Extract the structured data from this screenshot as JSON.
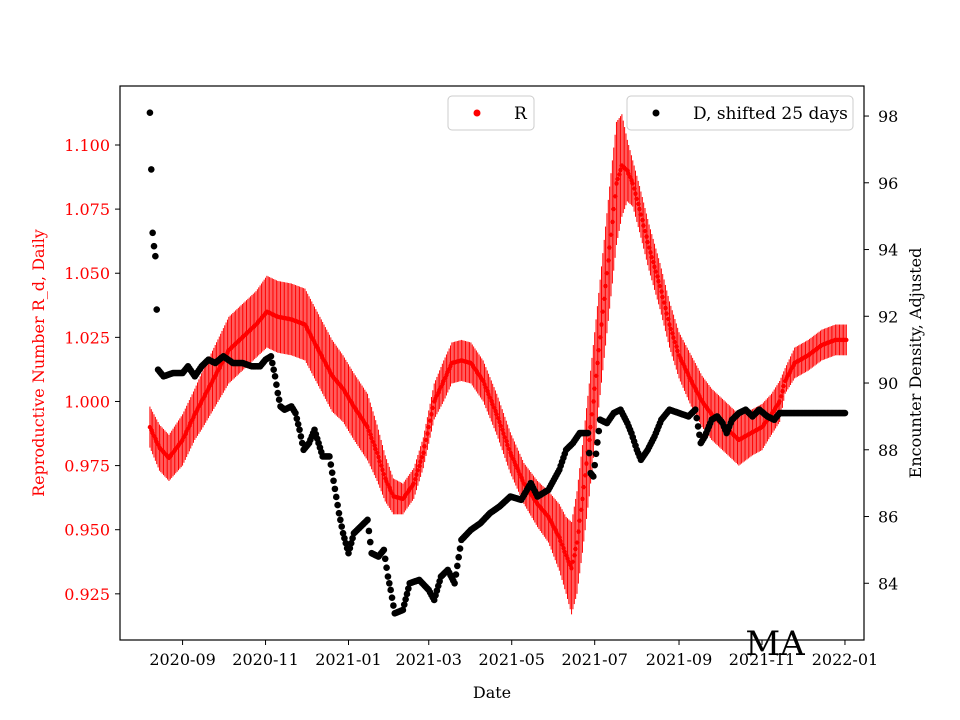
{
  "chart_data": {
    "type": "scatter",
    "title": "",
    "xlabel": "Date",
    "ylabel_left": "Reproductive Number R_d, Daily",
    "ylabel_right": "Encounter Density, Adjusted",
    "annotation": "MA",
    "x_range": [
      "2020-07-17",
      "2022-01-15"
    ],
    "ylim_left": [
      0.907,
      1.123
    ],
    "ylim_right": [
      82.3,
      98.9
    ],
    "x_ticks": [
      "2020-09",
      "2020-11",
      "2021-01",
      "2021-03",
      "2021-05",
      "2021-07",
      "2021-09",
      "2021-11",
      "2022-01"
    ],
    "y_ticks_left": [
      "0.925",
      "0.950",
      "0.975",
      "1.000",
      "1.025",
      "1.050",
      "1.075",
      "1.100"
    ],
    "y_ticks_right": [
      "84",
      "86",
      "88",
      "90",
      "92",
      "94",
      "96",
      "98"
    ],
    "grid": false,
    "colors": {
      "R": "#ff0000",
      "D": "#000000",
      "axes": "#000000"
    },
    "legends": [
      {
        "placement": "upper-center",
        "label": "R",
        "marker": "red-dot"
      },
      {
        "placement": "upper-right",
        "label": "D, shifted 25 days",
        "marker": "black-dot"
      }
    ],
    "series": [
      {
        "name": "R",
        "axis": "left",
        "error_bars": true,
        "points": [
          [
            "2020-08-08",
            0.99,
            0.008
          ],
          [
            "2020-08-15",
            0.982,
            0.009
          ],
          [
            "2020-08-22",
            0.978,
            0.009
          ],
          [
            "2020-09-01",
            0.985,
            0.01
          ],
          [
            "2020-09-10",
            0.995,
            0.01
          ],
          [
            "2020-09-15",
            1.0,
            0.011
          ],
          [
            "2020-09-25",
            1.01,
            0.012
          ],
          [
            "2020-10-05",
            1.02,
            0.013
          ],
          [
            "2020-10-15",
            1.025,
            0.013
          ],
          [
            "2020-10-25",
            1.03,
            0.013
          ],
          [
            "2020-11-02",
            1.035,
            0.014
          ],
          [
            "2020-11-10",
            1.033,
            0.014
          ],
          [
            "2020-11-20",
            1.032,
            0.014
          ],
          [
            "2020-11-30",
            1.03,
            0.014
          ],
          [
            "2020-12-10",
            1.02,
            0.014
          ],
          [
            "2020-12-20",
            1.01,
            0.014
          ],
          [
            "2020-12-28",
            1.005,
            0.013
          ],
          [
            "2021-01-05",
            0.998,
            0.013
          ],
          [
            "2021-01-15",
            0.99,
            0.013
          ],
          [
            "2021-01-22",
            0.98,
            0.011
          ],
          [
            "2021-01-28",
            0.97,
            0.009
          ],
          [
            "2021-02-03",
            0.963,
            0.007
          ],
          [
            "2021-02-10",
            0.962,
            0.006
          ],
          [
            "2021-02-18",
            0.968,
            0.006
          ],
          [
            "2021-02-25",
            0.98,
            0.006
          ],
          [
            "2021-03-05",
            1.0,
            0.007
          ],
          [
            "2021-03-12",
            1.008,
            0.008
          ],
          [
            "2021-03-18",
            1.015,
            0.008
          ],
          [
            "2021-03-25",
            1.016,
            0.008
          ],
          [
            "2021-04-01",
            1.015,
            0.008
          ],
          [
            "2021-04-10",
            1.008,
            0.008
          ],
          [
            "2021-04-20",
            0.995,
            0.008
          ],
          [
            "2021-04-30",
            0.98,
            0.008
          ],
          [
            "2021-05-10",
            0.968,
            0.008
          ],
          [
            "2021-05-20",
            0.96,
            0.009
          ],
          [
            "2021-05-28",
            0.955,
            0.01
          ],
          [
            "2021-06-05",
            0.947,
            0.013
          ],
          [
            "2021-06-10",
            0.94,
            0.015
          ],
          [
            "2021-06-14",
            0.935,
            0.018
          ],
          [
            "2021-06-18",
            0.945,
            0.02
          ],
          [
            "2021-06-22",
            0.962,
            0.021
          ],
          [
            "2021-06-27",
            0.985,
            0.022
          ],
          [
            "2021-07-02",
            1.01,
            0.022
          ],
          [
            "2021-07-08",
            1.04,
            0.023
          ],
          [
            "2021-07-13",
            1.065,
            0.024
          ],
          [
            "2021-07-17",
            1.085,
            0.024
          ],
          [
            "2021-07-21",
            1.092,
            0.02
          ],
          [
            "2021-07-25",
            1.09,
            0.012
          ],
          [
            "2021-07-29",
            1.085,
            0.009
          ],
          [
            "2021-08-03",
            1.075,
            0.009
          ],
          [
            "2021-08-10",
            1.06,
            0.009
          ],
          [
            "2021-08-18",
            1.045,
            0.009
          ],
          [
            "2021-08-25",
            1.03,
            0.009
          ],
          [
            "2021-09-01",
            1.018,
            0.009
          ],
          [
            "2021-09-10",
            1.008,
            0.01
          ],
          [
            "2021-09-18",
            1.0,
            0.01
          ],
          [
            "2021-09-25",
            0.995,
            0.01
          ],
          [
            "2021-10-05",
            0.99,
            0.01
          ],
          [
            "2021-10-15",
            0.985,
            0.01
          ],
          [
            "2021-10-25",
            0.988,
            0.009
          ],
          [
            "2021-11-01",
            0.99,
            0.009
          ],
          [
            "2021-11-08",
            0.995,
            0.008
          ],
          [
            "2021-11-14",
            1.0,
            0.008
          ],
          [
            "2021-11-18",
            1.008,
            0.005
          ],
          [
            "2021-11-25",
            1.015,
            0.006
          ],
          [
            "2021-12-05",
            1.018,
            0.006
          ],
          [
            "2021-12-15",
            1.022,
            0.006
          ],
          [
            "2021-12-25",
            1.024,
            0.006
          ],
          [
            "2022-01-02",
            1.024,
            0.006
          ]
        ]
      },
      {
        "name": "D, shifted 25 days",
        "axis": "right",
        "points": [
          [
            "2020-08-08",
            98.1
          ],
          [
            "2020-08-09",
            96.4
          ],
          [
            "2020-08-10",
            94.5
          ],
          [
            "2020-08-11",
            94.1
          ],
          [
            "2020-08-12",
            93.8
          ],
          [
            "2020-08-13",
            92.2
          ],
          [
            "2020-08-14",
            90.4
          ],
          [
            "2020-08-18",
            90.2
          ],
          [
            "2020-08-25",
            90.3
          ],
          [
            "2020-09-01",
            90.3
          ],
          [
            "2020-09-05",
            90.5
          ],
          [
            "2020-09-10",
            90.2
          ],
          [
            "2020-09-15",
            90.5
          ],
          [
            "2020-09-20",
            90.7
          ],
          [
            "2020-09-25",
            90.6
          ],
          [
            "2020-10-01",
            90.8
          ],
          [
            "2020-10-08",
            90.6
          ],
          [
            "2020-10-15",
            90.6
          ],
          [
            "2020-10-22",
            90.5
          ],
          [
            "2020-10-28",
            90.5
          ],
          [
            "2020-11-01",
            90.7
          ],
          [
            "2020-11-05",
            90.8
          ],
          [
            "2020-11-08",
            90.2
          ],
          [
            "2020-11-10",
            89.7
          ],
          [
            "2020-11-12",
            89.3
          ],
          [
            "2020-11-15",
            89.2
          ],
          [
            "2020-11-20",
            89.3
          ],
          [
            "2020-11-23",
            89.1
          ],
          [
            "2020-11-26",
            88.6
          ],
          [
            "2020-11-29",
            88.0
          ],
          [
            "2020-12-03",
            88.2
          ],
          [
            "2020-12-07",
            88.6
          ],
          [
            "2020-12-10",
            88.2
          ],
          [
            "2020-12-13",
            87.8
          ],
          [
            "2020-12-18",
            87.8
          ],
          [
            "2020-12-25",
            86.1
          ],
          [
            "2020-12-28",
            85.5
          ],
          [
            "2021-01-01",
            84.9
          ],
          [
            "2021-01-05",
            85.5
          ],
          [
            "2021-01-10",
            85.7
          ],
          [
            "2021-01-15",
            85.9
          ],
          [
            "2021-01-18",
            84.9
          ],
          [
            "2021-01-23",
            84.8
          ],
          [
            "2021-01-27",
            85.0
          ],
          [
            "2021-01-30",
            84.2
          ],
          [
            "2021-02-01",
            83.8
          ],
          [
            "2021-02-04",
            83.1
          ],
          [
            "2021-02-10",
            83.2
          ],
          [
            "2021-02-15",
            84.0
          ],
          [
            "2021-02-22",
            84.1
          ],
          [
            "2021-03-01",
            83.8
          ],
          [
            "2021-03-05",
            83.5
          ],
          [
            "2021-03-10",
            84.2
          ],
          [
            "2021-03-15",
            84.4
          ],
          [
            "2021-03-20",
            84.0
          ],
          [
            "2021-03-25",
            85.3
          ],
          [
            "2021-04-01",
            85.6
          ],
          [
            "2021-04-08",
            85.8
          ],
          [
            "2021-04-15",
            86.1
          ],
          [
            "2021-04-22",
            86.3
          ],
          [
            "2021-04-30",
            86.6
          ],
          [
            "2021-05-08",
            86.5
          ],
          [
            "2021-05-15",
            87.0
          ],
          [
            "2021-05-20",
            86.6
          ],
          [
            "2021-05-28",
            86.8
          ],
          [
            "2021-06-05",
            87.4
          ],
          [
            "2021-06-10",
            88.0
          ],
          [
            "2021-06-15",
            88.2
          ],
          [
            "2021-06-20",
            88.5
          ],
          [
            "2021-06-26",
            88.5
          ],
          [
            "2021-06-28",
            87.3
          ],
          [
            "2021-06-30",
            87.2
          ],
          [
            "2021-07-05",
            88.9
          ],
          [
            "2021-07-10",
            88.8
          ],
          [
            "2021-07-15",
            89.1
          ],
          [
            "2021-07-20",
            89.2
          ],
          [
            "2021-07-25",
            88.8
          ],
          [
            "2021-07-28",
            88.5
          ],
          [
            "2021-08-01",
            88.0
          ],
          [
            "2021-08-04",
            87.7
          ],
          [
            "2021-08-09",
            88.0
          ],
          [
            "2021-08-14",
            88.4
          ],
          [
            "2021-08-19",
            88.9
          ],
          [
            "2021-08-25",
            89.2
          ],
          [
            "2021-09-01",
            89.1
          ],
          [
            "2021-09-08",
            89.0
          ],
          [
            "2021-09-13",
            89.2
          ],
          [
            "2021-09-17",
            88.2
          ],
          [
            "2021-09-20",
            88.4
          ],
          [
            "2021-09-25",
            88.9
          ],
          [
            "2021-09-29",
            89.0
          ],
          [
            "2021-10-03",
            88.8
          ],
          [
            "2021-10-06",
            88.5
          ],
          [
            "2021-10-10",
            88.9
          ],
          [
            "2021-10-15",
            89.1
          ],
          [
            "2021-10-20",
            89.2
          ],
          [
            "2021-10-25",
            89.0
          ],
          [
            "2021-10-30",
            89.2
          ],
          [
            "2021-11-05",
            89.0
          ],
          [
            "2021-11-10",
            88.9
          ],
          [
            "2021-11-14",
            89.1
          ],
          [
            "2021-11-20",
            89.1
          ],
          [
            "2021-11-30",
            89.1
          ],
          [
            "2021-12-10",
            89.1
          ],
          [
            "2021-12-20",
            89.1
          ],
          [
            "2022-01-01",
            89.1
          ]
        ]
      }
    ]
  }
}
